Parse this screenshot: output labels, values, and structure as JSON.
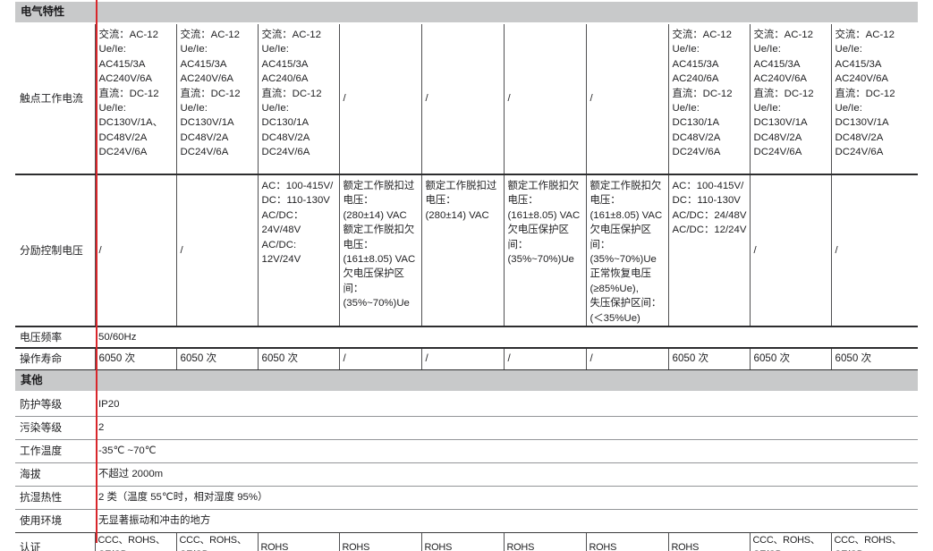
{
  "accent": {
    "highlight_red": "#d8262b",
    "section_bar_grey": "#c8c9ca",
    "rule_dark": "#2d2d2f",
    "rule_light": "#939598"
  },
  "sections": [
    {
      "title": "电气特性",
      "rows": [
        {
          "id": "contact-current",
          "label": "触点工作电流",
          "cells": [
            "交流：AC-12\nUe/Ie:\nAC415/3A\nAC240V/6A\n直流：DC-12\nUe/Ie:\nDC130V/1A、\nDC48V/2A\nDC24V/6A",
            "交流：AC-12\nUe/Ie:\nAC415/3A\nAC240V/6A\n直流：DC-12\nUe/Ie:\nDC130V/1A\nDC48V/2A\nDC24V/6A",
            "交流：AC-12\nUe/Ie:\nAC415/3A\nAC240/6A\n直流：DC-12\nUe/Ie:\nDC130/1A\nDC48V/2A\nDC24V/6A",
            "/",
            "/",
            "/",
            "/",
            "交流：AC-12\nUe/Ie:\nAC415/3A\nAC240/6A\n直流：DC-12\nUe/Ie:\nDC130/1A\nDC48V/2A\nDC24V/6A",
            "交流：AC-12\nUe/Ie:\nAC415/3A\nAC240V/6A\n直流：DC-12\nUe/Ie:\nDC130V/1A\nDC48V/2A\nDC24V/6A",
            "交流：AC-12\nUe/Ie:\nAC415/3A\nAC240V/6A\n直流：DC-12\nUe/Ie:\nDC130V/1A\nDC48V/2A\nDC24V/6A"
          ]
        },
        {
          "id": "shunt-control-voltage",
          "label": "分励控制电压",
          "cells": [
            "/",
            "/",
            "AC：100-415V/\nDC：110-130V\nAC/DC：24V/48V\nAC/DC: 12V/24V",
            "额定工作脱扣过\n电压：\n(280±14) VAC\n额定工作脱扣欠\n电压：\n(161±8.05) VAC\n欠电压保护区间：\n(35%~70%)Ue",
            "额定工作脱扣过\n电压：\n(280±14) VAC",
            "额定工作脱扣欠\n电压：\n(161±8.05) VAC\n欠电压保护区间：\n(35%~70%)Ue",
            "额定工作脱扣欠\n电压：\n(161±8.05) VAC\n欠电压保护区间：\n(35%~70%)Ue\n正常恢复电压\n(≥85%Ue),\n失压保护区间：\n(＜35%Ue)",
            "AC：100-415V/\nDC：110-130V\nAC/DC：24/48V\nAC/DC：12/24V",
            "/",
            "/"
          ]
        },
        {
          "id": "voltage-frequency",
          "label": "电压频率",
          "value": "50/60Hz"
        },
        {
          "id": "service-life",
          "label": "操作寿命",
          "cells": [
            "6050 次",
            "6050 次",
            "6050 次",
            "/",
            "/",
            "/",
            "/",
            "6050 次",
            "6050 次",
            "6050 次"
          ]
        }
      ]
    },
    {
      "title": "其他",
      "rows": [
        {
          "id": "ip-rating",
          "label": "防护等级",
          "value": "IP20"
        },
        {
          "id": "pollution-degree",
          "label": "污染等级",
          "value": "2"
        },
        {
          "id": "operating-temperature",
          "label": "工作温度",
          "value": "-35℃ ~70℃"
        },
        {
          "id": "altitude",
          "label": "海拔",
          "value": "不超过 2000m"
        },
        {
          "id": "damp-heat-resistance",
          "label": "抗湿热性",
          "value": "2 类（温度 55℃时，相对湿度 95%）"
        },
        {
          "id": "operating-environment",
          "label": "使用环境",
          "value": "无显著振动和冲击的地方"
        },
        {
          "id": "certification",
          "label": "认证",
          "cells": [
            "CCC、ROHS、CE/CB",
            "CCC、ROHS、CE/CB",
            "ROHS",
            "ROHS",
            "ROHS",
            "ROHS",
            "ROHS",
            "ROHS",
            "CCC、ROHS、CE/CB",
            "CCC、ROHS、CE/CB"
          ]
        }
      ]
    }
  ]
}
